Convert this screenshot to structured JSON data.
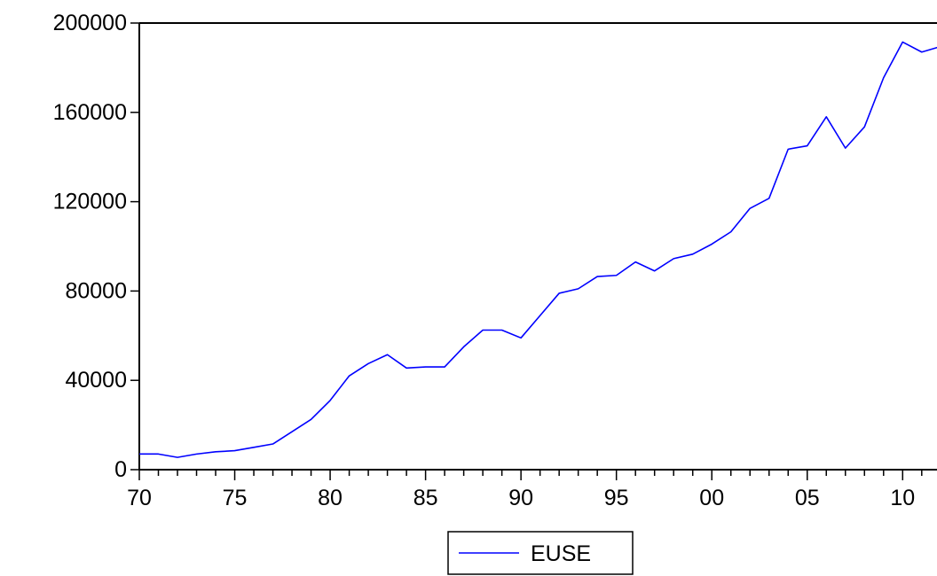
{
  "chart_data": {
    "type": "line",
    "title": "",
    "xlabel": "",
    "ylabel": "",
    "xlim": [
      1970,
      2011.8
    ],
    "ylim": [
      0,
      200000
    ],
    "grid": false,
    "legend_placement": "bottom-center",
    "x_ticks": [
      {
        "value": 1970,
        "label": "70"
      },
      {
        "value": 1975,
        "label": "75"
      },
      {
        "value": 1980,
        "label": "80"
      },
      {
        "value": 1985,
        "label": "85"
      },
      {
        "value": 1990,
        "label": "90"
      },
      {
        "value": 1995,
        "label": "95"
      },
      {
        "value": 2000,
        "label": "00"
      },
      {
        "value": 2005,
        "label": "05"
      },
      {
        "value": 2010,
        "label": "10"
      }
    ],
    "y_ticks": [
      {
        "value": 0,
        "label": "0"
      },
      {
        "value": 40000,
        "label": "40000"
      },
      {
        "value": 80000,
        "label": "80000"
      },
      {
        "value": 120000,
        "label": "120000"
      },
      {
        "value": 160000,
        "label": "160000"
      },
      {
        "value": 200000,
        "label": "200000"
      }
    ],
    "series": [
      {
        "name": "EUSE",
        "color": "#0000ff",
        "x": [
          1970,
          1971,
          1972,
          1973,
          1974,
          1975,
          1976,
          1977,
          1978,
          1979,
          1980,
          1981,
          1982,
          1983,
          1984,
          1985,
          1986,
          1987,
          1988,
          1989,
          1990,
          1991,
          1992,
          1993,
          1994,
          1995,
          1996,
          1997,
          1998,
          1999,
          2000,
          2001,
          2002,
          2003,
          2004,
          2005,
          2006,
          2007,
          2008,
          2009,
          2010,
          2011,
          2012
        ],
        "values": [
          7000,
          7000,
          5500,
          7000,
          8000,
          8500,
          10000,
          11500,
          17000,
          22500,
          31000,
          42000,
          47500,
          51500,
          45500,
          46000,
          46000,
          55000,
          62500,
          62500,
          59000,
          69000,
          79000,
          81000,
          86500,
          87000,
          93000,
          89000,
          94500,
          96500,
          101000,
          106500,
          117000,
          121500,
          143500,
          145000,
          158000,
          144000,
          153500,
          175500,
          191500,
          187000,
          189500
        ]
      }
    ]
  }
}
